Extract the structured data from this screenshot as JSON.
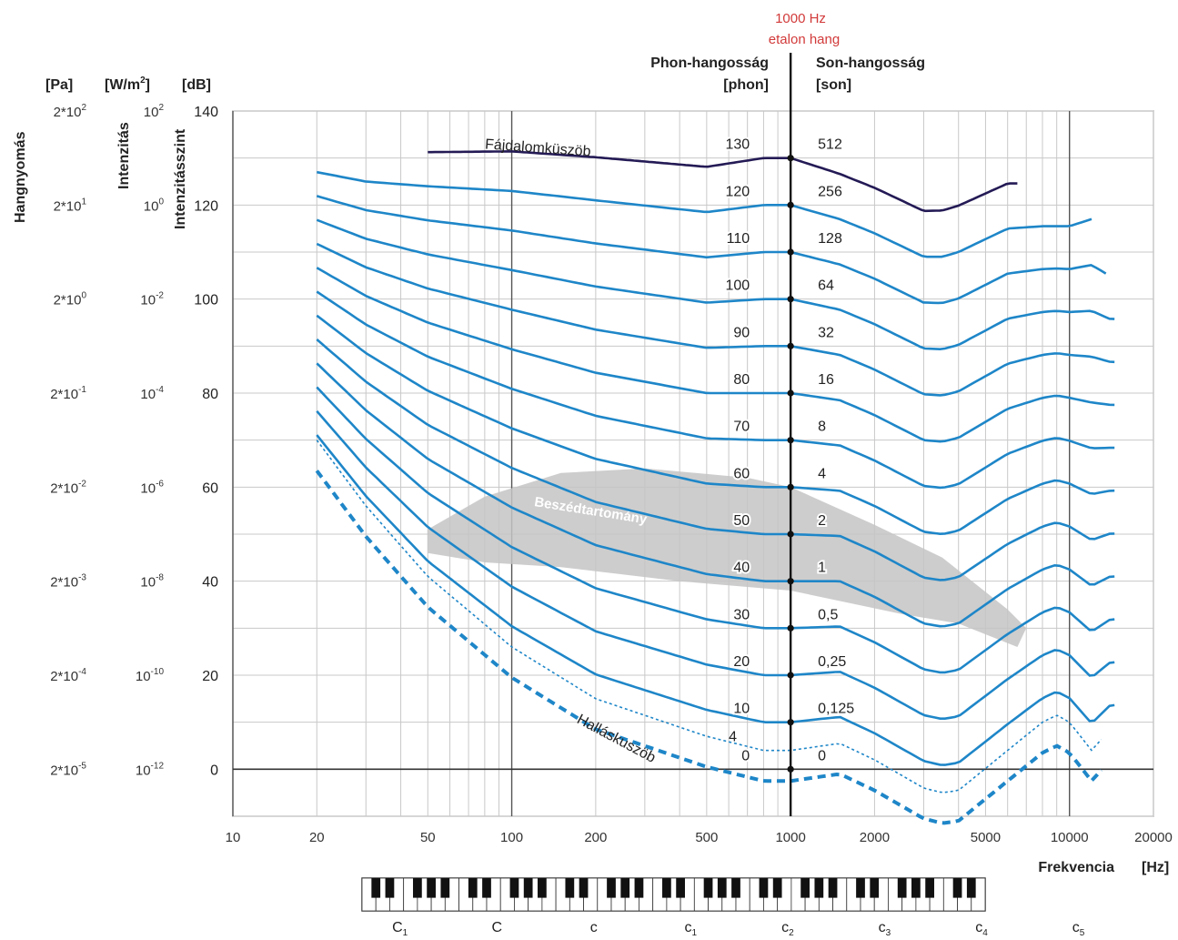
{
  "chart_data": {
    "type": "line",
    "x_scale": "log",
    "xlim": [
      10,
      20000
    ],
    "ylim": [
      -10,
      140
    ],
    "grid": true,
    "headers": {
      "pa": "[Pa]",
      "wm": "[W/m²]",
      "db": "[dB]",
      "hangnyomas": "Hangnyomás",
      "intenzitas": "Intenzitás",
      "intenzitasszint": "Intenzitásszint",
      "phon_title": "Phon-hangosság",
      "phon_unit": "[phon]",
      "son_title": "Son-hangosság",
      "son_unit": "[son]",
      "ref_line1": "1000 Hz",
      "ref_line2": "etalon hang"
    },
    "xlabel": "Frekvencia",
    "xunit": "[Hz]",
    "x_ticks": [
      {
        "value": 10,
        "label": "10"
      },
      {
        "value": 20,
        "label": "20"
      },
      {
        "value": 50,
        "label": "50"
      },
      {
        "value": 100,
        "label": "100"
      },
      {
        "value": 200,
        "label": "200"
      },
      {
        "value": 500,
        "label": "500"
      },
      {
        "value": 1000,
        "label": "1000"
      },
      {
        "value": 2000,
        "label": "2000"
      },
      {
        "value": 5000,
        "label": "5000"
      },
      {
        "value": 10000,
        "label": "10000"
      },
      {
        "value": 20000,
        "label": "20000"
      }
    ],
    "y_ticks": [
      {
        "db": 140,
        "db_label": "140",
        "pa": "2*10^2",
        "w": "10^2"
      },
      {
        "db": 120,
        "db_label": "120",
        "pa": "2*10^1",
        "w": "10^0"
      },
      {
        "db": 100,
        "db_label": "100",
        "pa": "2*10^0",
        "w": "10^-2"
      },
      {
        "db": 80,
        "db_label": "80",
        "pa": "2*10^-1",
        "w": "10^-4"
      },
      {
        "db": 60,
        "db_label": "60",
        "pa": "2*10^-2",
        "w": "10^-6"
      },
      {
        "db": 40,
        "db_label": "40",
        "pa": "2*10^-3",
        "w": "10^-8"
      },
      {
        "db": 20,
        "db_label": "20",
        "pa": "2*10^-4",
        "w": "10^-10"
      },
      {
        "db": 0,
        "db_label": "0",
        "pa": "2*10^-5",
        "w": "10^-12"
      }
    ],
    "series": [
      {
        "phon": 0,
        "phon_label": "0",
        "son_label": "0"
      },
      {
        "phon": 10,
        "phon_label": "10",
        "son_label": "0,125"
      },
      {
        "phon": 20,
        "phon_label": "20",
        "son_label": "0,25"
      },
      {
        "phon": 30,
        "phon_label": "30",
        "son_label": "0,5"
      },
      {
        "phon": 40,
        "phon_label": "40",
        "son_label": "1"
      },
      {
        "phon": 50,
        "phon_label": "50",
        "son_label": "2"
      },
      {
        "phon": 60,
        "phon_label": "60",
        "son_label": "4"
      },
      {
        "phon": 70,
        "phon_label": "70",
        "son_label": "8"
      },
      {
        "phon": 80,
        "phon_label": "80",
        "son_label": "16"
      },
      {
        "phon": 90,
        "phon_label": "90",
        "son_label": "32"
      },
      {
        "phon": 100,
        "phon_label": "100",
        "son_label": "64"
      },
      {
        "phon": 110,
        "phon_label": "110",
        "son_label": "128"
      },
      {
        "phon": 120,
        "phon_label": "120",
        "son_label": "256"
      },
      {
        "phon": 130,
        "phon_label": "130",
        "son_label": "512"
      }
    ],
    "dotted_curve_label": "4",
    "annotations": {
      "pain": "Fájdalomküszöb",
      "speech": "Beszédtartomány",
      "hearing": "Halláskuszöb"
    },
    "piano_notes": [
      "C1",
      "C",
      "c",
      "c1",
      "c2",
      "c3",
      "c4",
      "c5"
    ],
    "colors": {
      "curve": "#1e86c8",
      "pain": "#241a55",
      "speech": "#c4c4c4",
      "grid": "#c8c8c8",
      "reference": "#d23a3a"
    }
  }
}
